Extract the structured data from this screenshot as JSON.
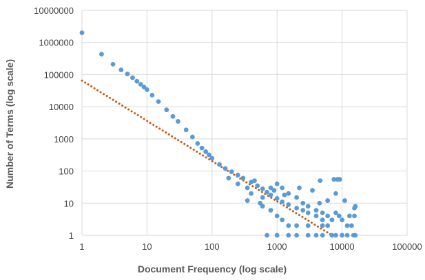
{
  "chart_data": {
    "type": "scatter",
    "xlabel": "Document Frequency (log scale)",
    "ylabel": "Number of Terms (log scale)",
    "x_scale": "log",
    "y_scale": "log",
    "xlim": [
      1,
      100000
    ],
    "ylim": [
      1,
      10000000
    ],
    "x_ticks": [
      "1",
      "10",
      "100",
      "1000",
      "10000",
      "100000"
    ],
    "y_ticks": [
      "1",
      "10",
      "100",
      "1000",
      "10000",
      "100000",
      "1000000",
      "10000000"
    ],
    "grid": "on",
    "legend": "none",
    "series": [
      {
        "marker": "circle",
        "color": "#5B9BD5",
        "points": [
          [
            1,
            2000000
          ],
          [
            2,
            430000
          ],
          [
            3,
            210000
          ],
          [
            4,
            140000
          ],
          [
            5,
            105000
          ],
          [
            6,
            80000
          ],
          [
            7,
            62000
          ],
          [
            8,
            50000
          ],
          [
            9,
            41000
          ],
          [
            10,
            34000
          ],
          [
            12,
            23000
          ],
          [
            15,
            14500
          ],
          [
            20,
            8000
          ],
          [
            25,
            5000
          ],
          [
            30,
            3500
          ],
          [
            40,
            1900
          ],
          [
            50,
            1150
          ],
          [
            60,
            720
          ],
          [
            70,
            520
          ],
          [
            80,
            400
          ],
          [
            90,
            320
          ],
          [
            100,
            250
          ],
          [
            130,
            160
          ],
          [
            160,
            120
          ],
          [
            200,
            95
          ],
          [
            250,
            75
          ],
          [
            300,
            60
          ],
          [
            400,
            45
          ],
          [
            500,
            35
          ],
          [
            600,
            28
          ],
          [
            700,
            22
          ],
          [
            800,
            18
          ],
          [
            1000,
            14
          ],
          [
            1200,
            11
          ],
          [
            1500,
            9
          ],
          [
            2000,
            7
          ],
          [
            2500,
            6
          ],
          [
            3000,
            5
          ],
          [
            4000,
            4
          ],
          [
            5000,
            3
          ],
          [
            6000,
            2
          ],
          [
            7000,
            1
          ],
          [
            180,
            60
          ],
          [
            250,
            40
          ],
          [
            350,
            30
          ],
          [
            450,
            50
          ],
          [
            600,
            15
          ],
          [
            800,
            30
          ],
          [
            1000,
            40
          ],
          [
            1200,
            30
          ],
          [
            1500,
            20
          ],
          [
            2000,
            15
          ],
          [
            2500,
            10
          ],
          [
            3000,
            8
          ],
          [
            4000,
            6
          ],
          [
            5000,
            5
          ],
          [
            6000,
            4
          ],
          [
            7000,
            3
          ],
          [
            8000,
            5
          ],
          [
            9000,
            4
          ],
          [
            10000,
            3
          ],
          [
            12000,
            2
          ],
          [
            14000,
            2
          ],
          [
            16000,
            8
          ],
          [
            600,
            8
          ],
          [
            800,
            6
          ],
          [
            1000,
            4
          ],
          [
            1200,
            3
          ],
          [
            1500,
            2
          ],
          [
            2000,
            2
          ],
          [
            3000,
            2
          ],
          [
            5000,
            2
          ],
          [
            700,
            1
          ],
          [
            1000,
            1
          ],
          [
            1500,
            1
          ],
          [
            2000,
            1
          ],
          [
            3000,
            1
          ],
          [
            4000,
            1
          ],
          [
            5000,
            1
          ],
          [
            8000,
            1
          ],
          [
            10000,
            1
          ],
          [
            12000,
            1
          ],
          [
            15000,
            1
          ],
          [
            16000,
            1
          ],
          [
            4600,
            50
          ],
          [
            7500,
            55
          ],
          [
            8500,
            55
          ],
          [
            9200,
            55
          ],
          [
            15500,
            7
          ],
          [
            15500,
            4
          ],
          [
            13000,
            4
          ],
          [
            11000,
            12
          ],
          [
            8000,
            20
          ],
          [
            6000,
            12
          ],
          [
            4500,
            10
          ],
          [
            3500,
            25
          ],
          [
            2200,
            30
          ],
          [
            1300,
            18
          ],
          [
            900,
            25
          ],
          [
            400,
            20
          ],
          [
            350,
            12
          ],
          [
            550,
            10
          ]
        ]
      },
      {
        "type": "trendline",
        "style": "dotted",
        "color": "#C55A11",
        "points": [
          [
            1,
            65000
          ],
          [
            7000,
            1
          ]
        ]
      }
    ]
  }
}
